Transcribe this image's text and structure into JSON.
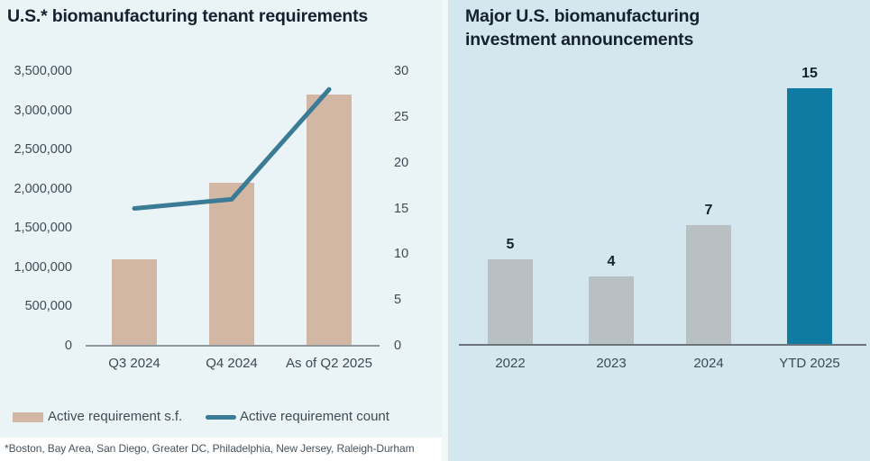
{
  "chart_data": [
    {
      "type": "combo-bar-line",
      "title": "U.S.* biomanufacturing tenant requirements",
      "categories": [
        "Q3 2024",
        "Q4 2024",
        "As of Q2 2025"
      ],
      "series": [
        {
          "name": "Active requirement s.f.",
          "type": "bar",
          "axis": "left",
          "color": "#d2b7a5",
          "values": [
            1100000,
            2080000,
            3200000
          ]
        },
        {
          "name": "Active requirement count",
          "type": "line",
          "axis": "right",
          "color": "#3b7b95",
          "values": [
            15,
            16,
            28
          ]
        }
      ],
      "left_axis": {
        "min": 0,
        "max": 3500000,
        "step": 500000,
        "tick_labels": [
          "0",
          "500,000",
          "1,000,000",
          "1,500,000",
          "2,000,000",
          "2,500,000",
          "3,000,000",
          "3,500,000"
        ]
      },
      "right_axis": {
        "min": 0,
        "max": 30,
        "step": 5,
        "tick_labels": [
          "0",
          "5",
          "10",
          "15",
          "20",
          "25",
          "30"
        ]
      },
      "legend_position": "bottom",
      "grid": "off",
      "footnote": "*Boston, Bay Area, San Diego, Greater DC, Philadelphia, New Jersey, Raleigh-Durham",
      "background_color": "#eaf3f5"
    },
    {
      "type": "bar",
      "title": "Major U.S. biomanufacturing\ninvestment announcements",
      "categories": [
        "2022",
        "2023",
        "2024",
        "YTD 2025"
      ],
      "values": [
        5,
        4,
        7,
        15
      ],
      "data_labels": [
        "5",
        "4",
        "7",
        "15"
      ],
      "bar_color": "#b8c0c4",
      "highlight_color": "#0f7ba3",
      "highlight_index": 3,
      "ylim": [
        0,
        15
      ],
      "grid": "off",
      "background_color": "#d5e7ee"
    }
  ]
}
